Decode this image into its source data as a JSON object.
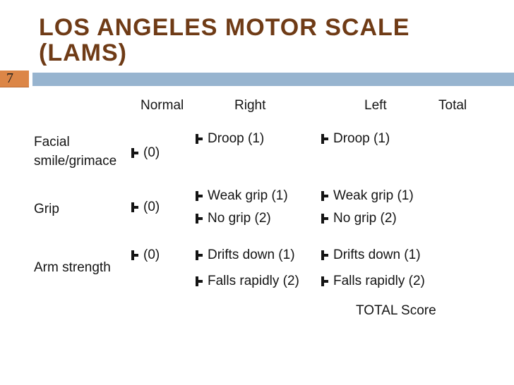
{
  "slide": {
    "title_line1": "LOS ANGELES MOTOR SCALE",
    "title_line2": "(LAMS)",
    "page_number": "7",
    "colors": {
      "title_brown": "#6f3b16",
      "tab_orange": "#dc8647",
      "bar_blue": "#97b4cf",
      "text": "#141414",
      "background": "#ffffff"
    },
    "icons": {
      "option_marker": "⊢"
    }
  },
  "table": {
    "headers": {
      "normal": "Normal",
      "right": "Right",
      "left": "Left",
      "total": "Total"
    },
    "rows": [
      {
        "label": "Facial smile/grimace",
        "normal": "(0)",
        "right": [
          "Droop (1)"
        ],
        "left": [
          "Droop (1)"
        ]
      },
      {
        "label": "Grip",
        "normal": "(0)",
        "right": [
          "Weak grip (1)",
          "No grip (2)"
        ],
        "left": [
          "Weak grip (1)",
          "No grip (2)"
        ]
      },
      {
        "label": "Arm strength",
        "normal": "(0)",
        "right": [
          "Drifts down (1)",
          "Falls rapidly (2)"
        ],
        "left": [
          "Drifts down (1)",
          "Falls rapidly (2)"
        ]
      }
    ],
    "footer": "TOTAL Score"
  }
}
